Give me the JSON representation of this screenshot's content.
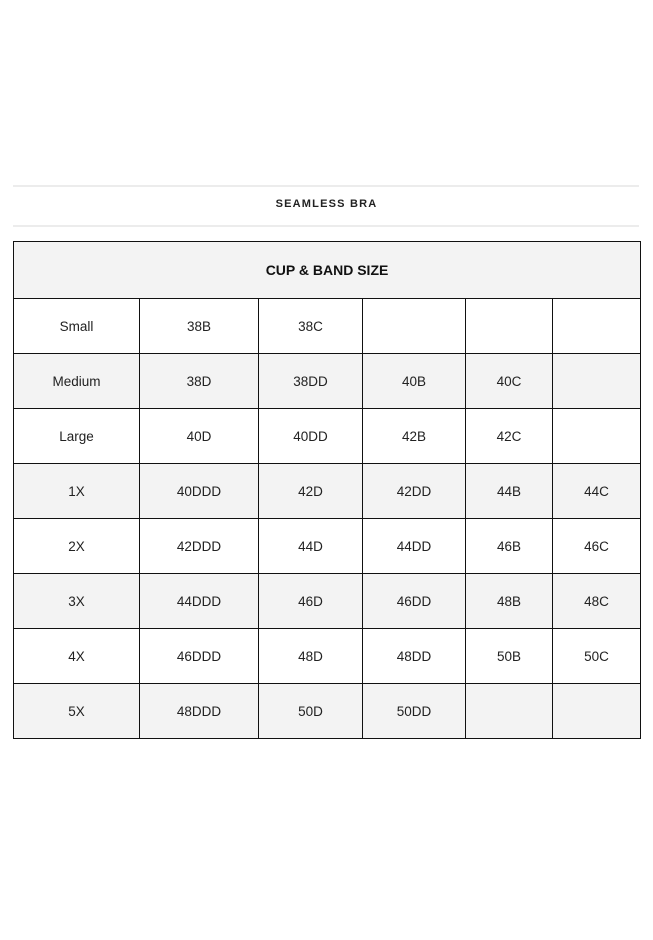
{
  "title": "SEAMLESS BRA",
  "table": {
    "header": "CUP & BAND SIZE",
    "rows": [
      {
        "label": "Small",
        "cells": [
          "38B",
          "38C",
          "",
          "",
          ""
        ]
      },
      {
        "label": "Medium",
        "cells": [
          "38D",
          "38DD",
          "40B",
          "40C",
          ""
        ]
      },
      {
        "label": "Large",
        "cells": [
          "40D",
          "40DD",
          "42B",
          "42C",
          ""
        ]
      },
      {
        "label": "1X",
        "cells": [
          "40DDD",
          "42D",
          "42DD",
          "44B",
          "44C"
        ]
      },
      {
        "label": "2X",
        "cells": [
          "42DDD",
          "44D",
          "44DD",
          "46B",
          "46C"
        ]
      },
      {
        "label": "3X",
        "cells": [
          "44DDD",
          "46D",
          "46DD",
          "48B",
          "48C"
        ]
      },
      {
        "label": "4X",
        "cells": [
          "46DDD",
          "48D",
          "48DD",
          "50B",
          "50C"
        ]
      },
      {
        "label": "5X",
        "cells": [
          "48DDD",
          "50D",
          "50DD",
          "",
          ""
        ]
      }
    ]
  },
  "colors": {
    "alt_row": "#f3f3f3",
    "border": "#111111"
  }
}
